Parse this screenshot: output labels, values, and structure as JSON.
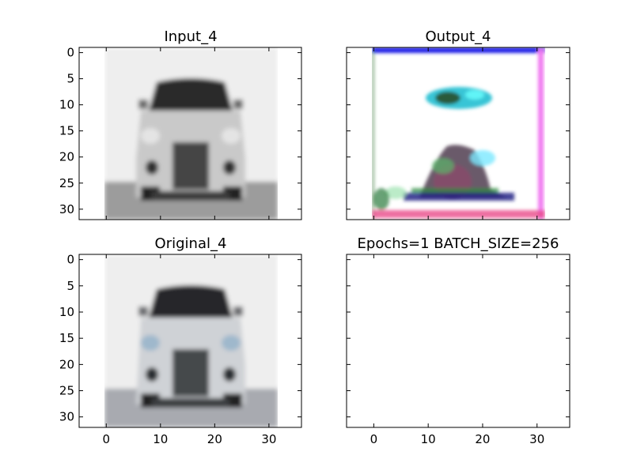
{
  "chart_data": [
    {
      "type": "image",
      "title": "Input_4",
      "content": "grayscale blurred image of a car (front view), 32x32 px",
      "xlim": [
        -5,
        36
      ],
      "ylim": [
        32,
        -1
      ],
      "yticks": [
        0,
        5,
        10,
        15,
        20,
        25,
        30
      ],
      "xticks": [],
      "image_extent": [
        0,
        32
      ]
    },
    {
      "type": "image",
      "title": "Output_4",
      "content": "noisy colored reconstruction with blue top border, magenta right border, dark blob at bottom",
      "xlim": [
        -5,
        36
      ],
      "ylim": [
        32,
        -1
      ],
      "yticks": [],
      "xticks": [],
      "image_extent": [
        0,
        32
      ]
    },
    {
      "type": "image",
      "title": "Original_4",
      "content": "color blurred image of a white car (front view), 32x32 px",
      "xlim": [
        -5,
        36
      ],
      "ylim": [
        32,
        -1
      ],
      "yticks": [
        0,
        5,
        10,
        15,
        20,
        25,
        30
      ],
      "xticks": [
        0,
        10,
        20,
        30
      ],
      "image_extent": [
        0,
        32
      ]
    },
    {
      "type": "image",
      "title": "Epochs=1 BATCH_SIZE=256",
      "content": "empty axes",
      "xlim": [
        -5,
        36
      ],
      "ylim": [
        32,
        -1
      ],
      "yticks": [],
      "xticks": [
        0,
        10,
        20,
        30
      ],
      "image_extent": null
    }
  ],
  "colors": {
    "frame": "#000000",
    "output_top_border": "#1010ee",
    "output_right_border": "#ee66ee"
  }
}
